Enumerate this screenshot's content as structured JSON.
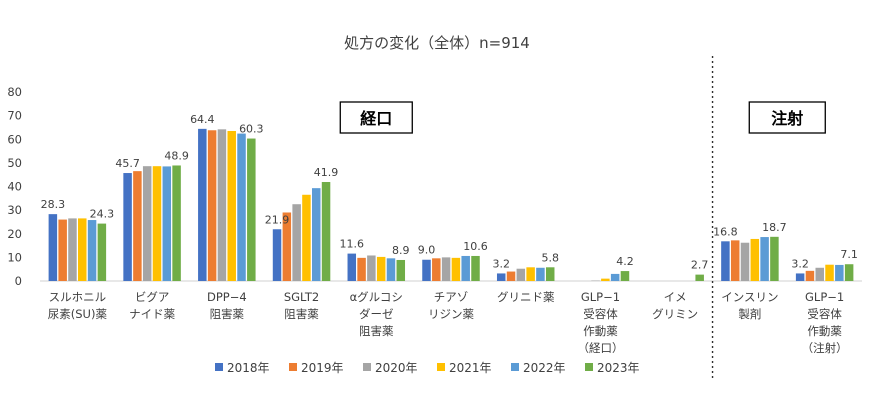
{
  "chart_data": {
    "type": "bar",
    "title": "処方の変化（全体）n=914",
    "categories": [
      [
        "スルホニル",
        "尿素(SU)薬"
      ],
      [
        "ビグア",
        "ナイド薬"
      ],
      [
        "DPP−4",
        "阻害薬"
      ],
      [
        "SGLT2",
        "阻害薬"
      ],
      [
        "αグルコシ",
        "ダーゼ",
        "阻害薬"
      ],
      [
        "チアゾ",
        "リジン薬"
      ],
      [
        "グリニド薬"
      ],
      [
        "GLP−1",
        "受容体",
        "作動薬",
        "（経口）"
      ],
      [
        "イメ",
        "グリミン"
      ],
      [
        "インスリン",
        "製剤"
      ],
      [
        "GLP−1",
        "受容体",
        "作動薬",
        "（注射）"
      ]
    ],
    "series": [
      {
        "name": "2018年",
        "color": "#4472C4",
        "values": [
          28.3,
          45.7,
          64.4,
          21.9,
          11.6,
          9.0,
          3.2,
          0,
          0,
          16.8,
          3.2
        ]
      },
      {
        "name": "2019年",
        "color": "#ED7D31",
        "values": [
          26.0,
          46.5,
          63.8,
          29.0,
          9.8,
          9.6,
          4.0,
          0,
          0,
          17.2,
          4.3
        ]
      },
      {
        "name": "2020年",
        "color": "#A5A5A5",
        "values": [
          26.5,
          48.6,
          64.2,
          32.5,
          10.8,
          10.0,
          5.2,
          0.2,
          0,
          16.2,
          5.6
        ]
      },
      {
        "name": "2021年",
        "color": "#FFC000",
        "values": [
          26.5,
          48.6,
          63.5,
          36.5,
          10.2,
          9.8,
          5.8,
          1.0,
          0,
          17.8,
          6.9
        ]
      },
      {
        "name": "2022年",
        "color": "#5B9BD5",
        "values": [
          25.8,
          48.5,
          62.4,
          39.3,
          9.6,
          10.6,
          5.6,
          3.0,
          0,
          18.6,
          6.8
        ]
      },
      {
        "name": "2023年",
        "color": "#70AD47",
        "values": [
          24.3,
          48.9,
          60.3,
          41.9,
          8.9,
          10.6,
          5.8,
          4.2,
          2.7,
          18.7,
          7.1
        ]
      }
    ],
    "data_labels": [
      {
        "category": 0,
        "series": 0,
        "text": "28.3"
      },
      {
        "category": 0,
        "series": 5,
        "text": "24.3"
      },
      {
        "category": 1,
        "series": 0,
        "text": "45.7"
      },
      {
        "category": 1,
        "series": 5,
        "text": "48.9"
      },
      {
        "category": 2,
        "series": 0,
        "text": "64.4"
      },
      {
        "category": 2,
        "series": 5,
        "text": "60.3"
      },
      {
        "category": 3,
        "series": 0,
        "text": "21.9"
      },
      {
        "category": 3,
        "series": 5,
        "text": "41.9"
      },
      {
        "category": 4,
        "series": 0,
        "text": "11.6"
      },
      {
        "category": 4,
        "series": 5,
        "text": "8.9"
      },
      {
        "category": 5,
        "series": 0,
        "text": "9.0"
      },
      {
        "category": 5,
        "series": 5,
        "text": "10.6"
      },
      {
        "category": 6,
        "series": 0,
        "text": "3.2"
      },
      {
        "category": 6,
        "series": 5,
        "text": "5.8"
      },
      {
        "category": 7,
        "series": 5,
        "text": "4.2"
      },
      {
        "category": 8,
        "series": 5,
        "text": "2.7"
      },
      {
        "category": 9,
        "series": 0,
        "text": "16.8"
      },
      {
        "category": 9,
        "series": 5,
        "text": "18.7"
      },
      {
        "category": 10,
        "series": 0,
        "text": "3.2"
      },
      {
        "category": 10,
        "series": 5,
        "text": "7.1"
      }
    ],
    "ylim": [
      0,
      80
    ],
    "yticks": [
      0,
      10,
      20,
      30,
      40,
      50,
      60,
      70,
      80
    ],
    "grid": false,
    "legend_position": "bottom",
    "annotations": [
      "経口",
      "注射"
    ]
  }
}
